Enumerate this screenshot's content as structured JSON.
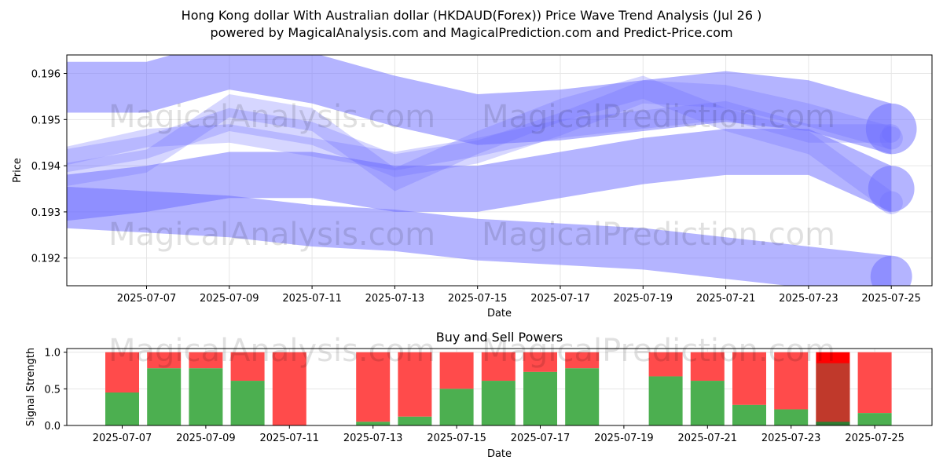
{
  "title": {
    "line1": "Hong Kong dollar With Australian dollar (HKDAUD(Forex)) Price Wave Trend Analysis (Jul 26 )",
    "line2": "powered by MagicalAnalysis.com and MagicalPrediction.com and Predict-Price.com"
  },
  "watermarks": [
    "MagicalAnalysis.com",
    "MagicalPrediction.com"
  ],
  "colors": {
    "wave": "#6a6aff",
    "buy": "#4caf50",
    "sell": "#ff4b4b",
    "sell_strong": "#ff0000",
    "buy_dark": "#2e7d32",
    "overlap": "#c0392b"
  },
  "chart_data": [
    {
      "type": "area",
      "title": "",
      "xlabel": "Date",
      "ylabel": "Price",
      "ylim": [
        0.1914,
        0.1964
      ],
      "x_ticks": [
        "2025-07-07",
        "2025-07-09",
        "2025-07-11",
        "2025-07-13",
        "2025-07-15",
        "2025-07-17",
        "2025-07-19",
        "2025-07-21",
        "2025-07-23",
        "2025-07-25"
      ],
      "y_ticks": [
        0.192,
        0.193,
        0.194,
        0.195,
        0.196
      ],
      "grid": true,
      "series": [
        {
          "x": [
            "2025-07-05",
            "2025-07-07",
            "2025-07-09",
            "2025-07-11",
            "2025-07-13",
            "2025-07-15",
            "2025-07-17",
            "2025-07-19",
            "2025-07-21",
            "2025-07-23",
            "2025-07-25"
          ],
          "center": [
            0.1957,
            0.1957,
            0.1962,
            0.1959,
            0.1954,
            0.195,
            0.1951,
            0.1953,
            0.1955,
            0.1953,
            0.1948
          ],
          "width": 0.0011
        },
        {
          "x": [
            "2025-07-05",
            "2025-07-07",
            "2025-07-09",
            "2025-07-11",
            "2025-07-13",
            "2025-07-15",
            "2025-07-17",
            "2025-07-19",
            "2025-07-21",
            "2025-07-23",
            "2025-07-25"
          ],
          "center": [
            0.1933,
            0.1935,
            0.1938,
            0.1938,
            0.1935,
            0.1935,
            0.1938,
            0.1941,
            0.1943,
            0.1943,
            0.1935
          ],
          "width": 0.001
        },
        {
          "x": [
            "2025-07-05",
            "2025-07-07",
            "2025-07-09",
            "2025-07-11",
            "2025-07-13",
            "2025-07-15",
            "2025-07-17",
            "2025-07-19",
            "2025-07-21",
            "2025-07-23",
            "2025-07-25"
          ],
          "center": [
            0.1931,
            0.193,
            0.1929,
            0.1927,
            0.1926,
            0.1924,
            0.1923,
            0.1922,
            0.192,
            0.1918,
            0.1916
          ],
          "width": 0.0009
        },
        {
          "x": [
            "2025-07-05",
            "2025-07-07",
            "2025-07-09",
            "2025-07-11",
            "2025-07-13",
            "2025-07-15",
            "2025-07-17",
            "2025-07-19",
            "2025-07-21",
            "2025-07-23",
            "2025-07-25"
          ],
          "center": [
            0.1941,
            0.1944,
            0.195,
            0.1947,
            0.194,
            0.1943,
            0.1949,
            0.1956,
            0.1955,
            0.1951,
            0.1946
          ],
          "width": 0.0005
        },
        {
          "x": [
            "2025-07-05",
            "2025-07-07",
            "2025-07-09",
            "2025-07-11",
            "2025-07-13",
            "2025-07-15",
            "2025-07-17",
            "2025-07-19",
            "2025-07-21",
            "2025-07-23",
            "2025-07-25"
          ],
          "center": [
            0.1938,
            0.1941,
            0.1953,
            0.195,
            0.1937,
            0.1945,
            0.1952,
            0.1957,
            0.195,
            0.1945,
            0.1932
          ],
          "width": 0.0005
        },
        {
          "x": [
            "2025-07-05",
            "2025-07-07",
            "2025-07-09",
            "2025-07-11",
            "2025-07-13",
            "2025-07-15",
            "2025-07-17",
            "2025-07-19",
            "2025-07-21",
            "2025-07-23",
            "2025-07-25"
          ],
          "center": [
            0.1942,
            0.1946,
            0.1947,
            0.1944,
            0.1941,
            0.1944,
            0.1948,
            0.195,
            0.1952,
            0.1947,
            0.1947
          ],
          "width": 0.0004
        }
      ]
    },
    {
      "type": "bar",
      "title": "Buy and Sell Powers",
      "xlabel": "Date",
      "ylabel": "Signal Strength",
      "ylim": [
        0,
        1.05
      ],
      "y_ticks": [
        0.0,
        0.5,
        1.0
      ],
      "x_ticks": [
        "2025-07-07",
        "2025-07-09",
        "2025-07-11",
        "2025-07-13",
        "2025-07-15",
        "2025-07-17",
        "2025-07-19",
        "2025-07-21",
        "2025-07-23",
        "2025-07-25"
      ],
      "categories": [
        "2025-07-07",
        "2025-07-08",
        "2025-07-09",
        "2025-07-10",
        "2025-07-11",
        "2025-07-13",
        "2025-07-14",
        "2025-07-15",
        "2025-07-16",
        "2025-07-17",
        "2025-07-18",
        "2025-07-20",
        "2025-07-21",
        "2025-07-22",
        "2025-07-23",
        "2025-07-24",
        "2025-07-25"
      ],
      "series": [
        {
          "values": [
            0.45,
            0.78,
            0.78,
            0.61,
            0.0,
            0.05,
            0.12,
            0.5,
            0.61,
            0.73,
            0.78,
            0.67,
            0.61,
            0.28,
            0.22,
            0.05,
            0.17
          ]
        },
        {
          "values": [
            0.55,
            0.22,
            0.22,
            0.39,
            1.0,
            0.95,
            0.88,
            0.5,
            0.39,
            0.27,
            0.22,
            0.33,
            0.39,
            0.72,
            0.78,
            0.95,
            0.83
          ]
        }
      ]
    }
  ]
}
